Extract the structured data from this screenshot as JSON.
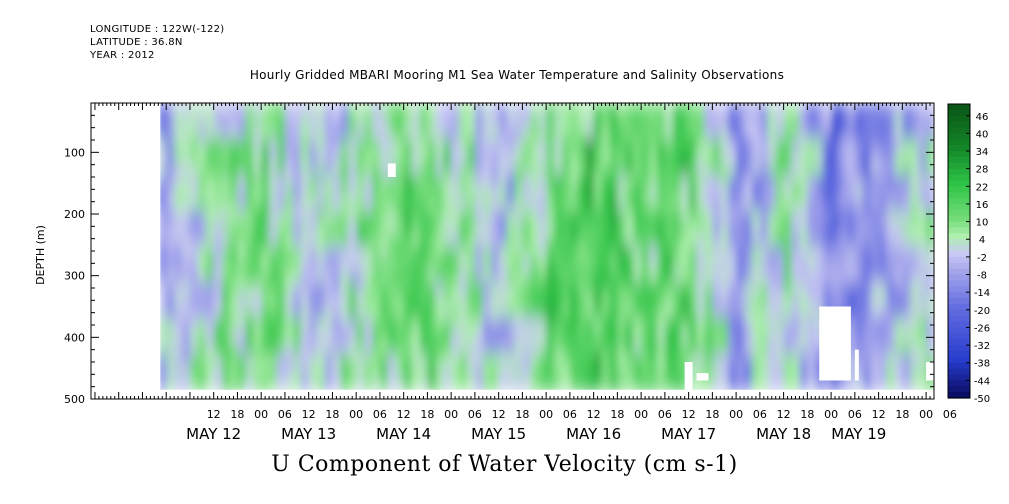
{
  "header": {
    "longitude": "LONGITUDE : 122W(-122)",
    "latitude": "LATITUDE : 36.8N",
    "year": "YEAR : 2012"
  },
  "chart_data": {
    "type": "heatmap",
    "title": "Hourly Gridded MBARI Mooring M1 Sea Water Temperature and Salinity Observations",
    "xlabel": "U Component of Water Velocity (cm s-1)",
    "ylabel": "DEPTH (m)",
    "y_axis": {
      "inverted": true,
      "range": [
        20,
        500
      ],
      "ticks": [
        100,
        200,
        300,
        400,
        500
      ],
      "data_range": [
        20,
        485
      ]
    },
    "x_axis": {
      "range_hours": [
        -19,
        194
      ],
      "start": "2012-05-11 17:00",
      "tick_labels": [
        {
          "hour": 12,
          "label": "12"
        },
        {
          "hour": 18,
          "label": "18"
        },
        {
          "hour": 24,
          "label": "00"
        },
        {
          "hour": 30,
          "label": "06"
        },
        {
          "hour": 36,
          "label": "12"
        },
        {
          "hour": 42,
          "label": "18"
        },
        {
          "hour": 48,
          "label": "00"
        },
        {
          "hour": 54,
          "label": "06"
        },
        {
          "hour": 60,
          "label": "12"
        },
        {
          "hour": 66,
          "label": "18"
        },
        {
          "hour": 72,
          "label": "00"
        },
        {
          "hour": 78,
          "label": "06"
        },
        {
          "hour": 84,
          "label": "12"
        },
        {
          "hour": 90,
          "label": "18"
        },
        {
          "hour": 96,
          "label": "00"
        },
        {
          "hour": 102,
          "label": "06"
        },
        {
          "hour": 108,
          "label": "12"
        },
        {
          "hour": 114,
          "label": "18"
        },
        {
          "hour": 120,
          "label": "00"
        },
        {
          "hour": 126,
          "label": "06"
        },
        {
          "hour": 132,
          "label": "12"
        },
        {
          "hour": 138,
          "label": "18"
        },
        {
          "hour": 144,
          "label": "00"
        },
        {
          "hour": 150,
          "label": "06"
        },
        {
          "hour": 156,
          "label": "12"
        },
        {
          "hour": 162,
          "label": "18"
        },
        {
          "hour": 168,
          "label": "00"
        },
        {
          "hour": 174,
          "label": "06"
        },
        {
          "hour": 180,
          "label": "12"
        },
        {
          "hour": 186,
          "label": "18"
        },
        {
          "hour": 192,
          "label": "00"
        },
        {
          "hour": 198,
          "label": "06"
        }
      ],
      "date_labels": [
        {
          "hour": 12,
          "label": "MAY 12"
        },
        {
          "hour": 36,
          "label": "MAY 13"
        },
        {
          "hour": 60,
          "label": "MAY 14"
        },
        {
          "hour": 84,
          "label": "MAY 15"
        },
        {
          "hour": 108,
          "label": "MAY 16"
        },
        {
          "hour": 132,
          "label": "MAY 17"
        },
        {
          "hour": 156,
          "label": "MAY 18"
        },
        {
          "hour": 175,
          "label": "MAY 19"
        }
      ]
    },
    "colorbar": {
      "levels": [
        46,
        40,
        34,
        28,
        22,
        16,
        10,
        4,
        -2,
        -8,
        -14,
        -20,
        -26,
        -32,
        -38,
        -44,
        -50
      ],
      "value_range": [
        -50,
        50
      ]
    },
    "missing_data_patches_depth": [
      {
        "hour_range": [
          56,
          58
        ],
        "depth_range": [
          118,
          140
        ]
      },
      {
        "hour_range": [
          131,
          133
        ],
        "depth_range": [
          440,
          485
        ]
      },
      {
        "hour_range": [
          134,
          137
        ],
        "depth_range": [
          458,
          470
        ]
      },
      {
        "hour_range": [
          174,
          175
        ],
        "depth_range": [
          420,
          470
        ]
      },
      {
        "hour_range": [
          165,
          173
        ],
        "depth_range": [
          350,
          470
        ]
      },
      {
        "hour_range": [
          192,
          194
        ],
        "depth_range": [
          440,
          470
        ]
      }
    ],
    "mean_u_profile_estimate": [
      {
        "hour": 0,
        "value": -5
      },
      {
        "hour": 12,
        "value": 4
      },
      {
        "hour": 24,
        "value": 10
      },
      {
        "hour": 36,
        "value": -4
      },
      {
        "hour": 48,
        "value": 6
      },
      {
        "hour": 60,
        "value": 12
      },
      {
        "hour": 72,
        "value": 10
      },
      {
        "hour": 84,
        "value": -6
      },
      {
        "hour": 96,
        "value": 12
      },
      {
        "hour": 108,
        "value": 18
      },
      {
        "hour": 120,
        "value": 10
      },
      {
        "hour": 132,
        "value": 14
      },
      {
        "hour": 144,
        "value": -10
      },
      {
        "hour": 156,
        "value": 4
      },
      {
        "hour": 168,
        "value": -16
      },
      {
        "hour": 180,
        "value": -10
      },
      {
        "hour": 192,
        "value": 4
      }
    ]
  },
  "colors": {
    "cb_top": "#0a5a1a",
    "cb_mid_green": "#46c84f",
    "cb_light_green": "#9ee6a0",
    "cb_light_blue": "#b8b8ee",
    "cb_mid_blue": "#6a72e0",
    "cb_bottom": "#0c1470"
  }
}
